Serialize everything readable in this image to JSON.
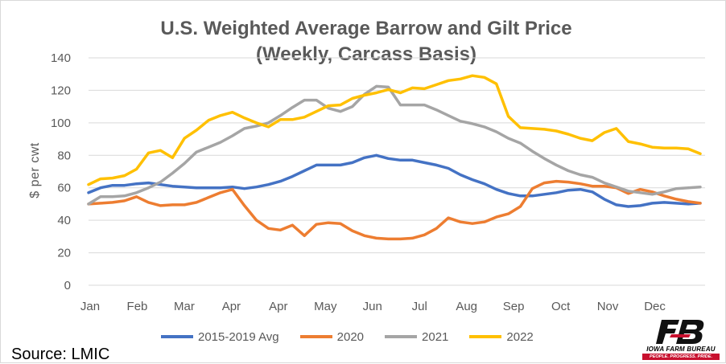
{
  "chart_data": {
    "type": "line",
    "title": "U.S. Weighted Average Barrow and Gilt Price",
    "subtitle": "(Weekly, Carcass Basis)",
    "xlabel": "",
    "ylabel": "$ per cwt",
    "ylim": [
      0,
      140
    ],
    "yticks": [
      0,
      20,
      40,
      60,
      80,
      100,
      120,
      140
    ],
    "x_tick_labels": [
      "Jan",
      "Feb",
      "Mar",
      "Apr",
      "Apr",
      "May",
      "Jun",
      "Jul",
      "Aug",
      "Sep",
      "Oct",
      "Nov",
      "Dec"
    ],
    "x_weeks": [
      1,
      2,
      3,
      4,
      5,
      6,
      7,
      8,
      9,
      10,
      11,
      12,
      13,
      14,
      15,
      16,
      17,
      18,
      19,
      20,
      21,
      22,
      23,
      24,
      25,
      26,
      27,
      28,
      29,
      30,
      31,
      32,
      33,
      34,
      35,
      36,
      37,
      38,
      39,
      40,
      41,
      42,
      43,
      44,
      45,
      46,
      47,
      48,
      49,
      50,
      51,
      52
    ],
    "grid": true,
    "legend_position": "bottom",
    "series": [
      {
        "name": "2015-2019 Avg",
        "color": "#4472c4",
        "values": [
          57,
          60,
          61.5,
          61.5,
          62.5,
          63,
          62,
          61,
          60.5,
          60,
          60,
          60,
          60.5,
          59.5,
          60.5,
          62,
          64,
          67,
          70.5,
          74,
          74,
          74,
          75.5,
          78.5,
          80,
          78,
          77,
          77,
          75.5,
          74,
          72,
          68,
          65,
          62.5,
          59,
          56.5,
          55,
          55,
          56,
          57,
          58.5,
          59,
          57.5,
          53,
          49.5,
          48.5,
          49,
          50.5,
          51,
          50.5,
          50,
          50.5
        ]
      },
      {
        "name": "2020",
        "color": "#ed7d31",
        "values": [
          50,
          50.5,
          51,
          52,
          54.5,
          51,
          49,
          49.5,
          49.5,
          51,
          54,
          57,
          59,
          49,
          40,
          35,
          34,
          37,
          30.5,
          37.5,
          38.5,
          38,
          33.5,
          30.5,
          29,
          28.5,
          28.5,
          29,
          31,
          35,
          41.5,
          39,
          38,
          39,
          42,
          44,
          48.5,
          59.5,
          63,
          64,
          63.5,
          62.5,
          61,
          61,
          60,
          56.5,
          59,
          57.5,
          55,
          53,
          51.5,
          50.5
        ]
      },
      {
        "name": "2021",
        "color": "#a5a5a5",
        "values": [
          50,
          54.5,
          54.5,
          55,
          57,
          60,
          63.5,
          69,
          75,
          82,
          85,
          88,
          92,
          96.5,
          98,
          100,
          104.5,
          109.5,
          114,
          114,
          109,
          107,
          110,
          117.5,
          122.5,
          122,
          111,
          111,
          111,
          108,
          104.5,
          101,
          99.5,
          97.5,
          94.5,
          90.5,
          87.5,
          82.5,
          78,
          74,
          70.5,
          68,
          66.5,
          63,
          60.5,
          58,
          57,
          56,
          57.5,
          59.5,
          60,
          60.5
        ]
      },
      {
        "name": "2022",
        "color": "#ffc000",
        "values": [
          62,
          65.5,
          66,
          67.5,
          71.5,
          81.5,
          83,
          78.5,
          90.5,
          95.5,
          101.5,
          104.5,
          106.5,
          103,
          100,
          97.5,
          102,
          102,
          103.5,
          107,
          110.5,
          111,
          115,
          117,
          118.5,
          120.5,
          118.5,
          121.5,
          121,
          123.5,
          126,
          127,
          129,
          128,
          124,
          104,
          97,
          96.5,
          96,
          95,
          93,
          90.5,
          89,
          94,
          96.5,
          88.5,
          87,
          85,
          84.5,
          84.5,
          84,
          81
        ]
      }
    ]
  },
  "source": "Source: LMIC",
  "logo": {
    "name": "IOWA FARM BUREAU",
    "tagline": "PEOPLE. PROGRESS. PRIDE."
  }
}
